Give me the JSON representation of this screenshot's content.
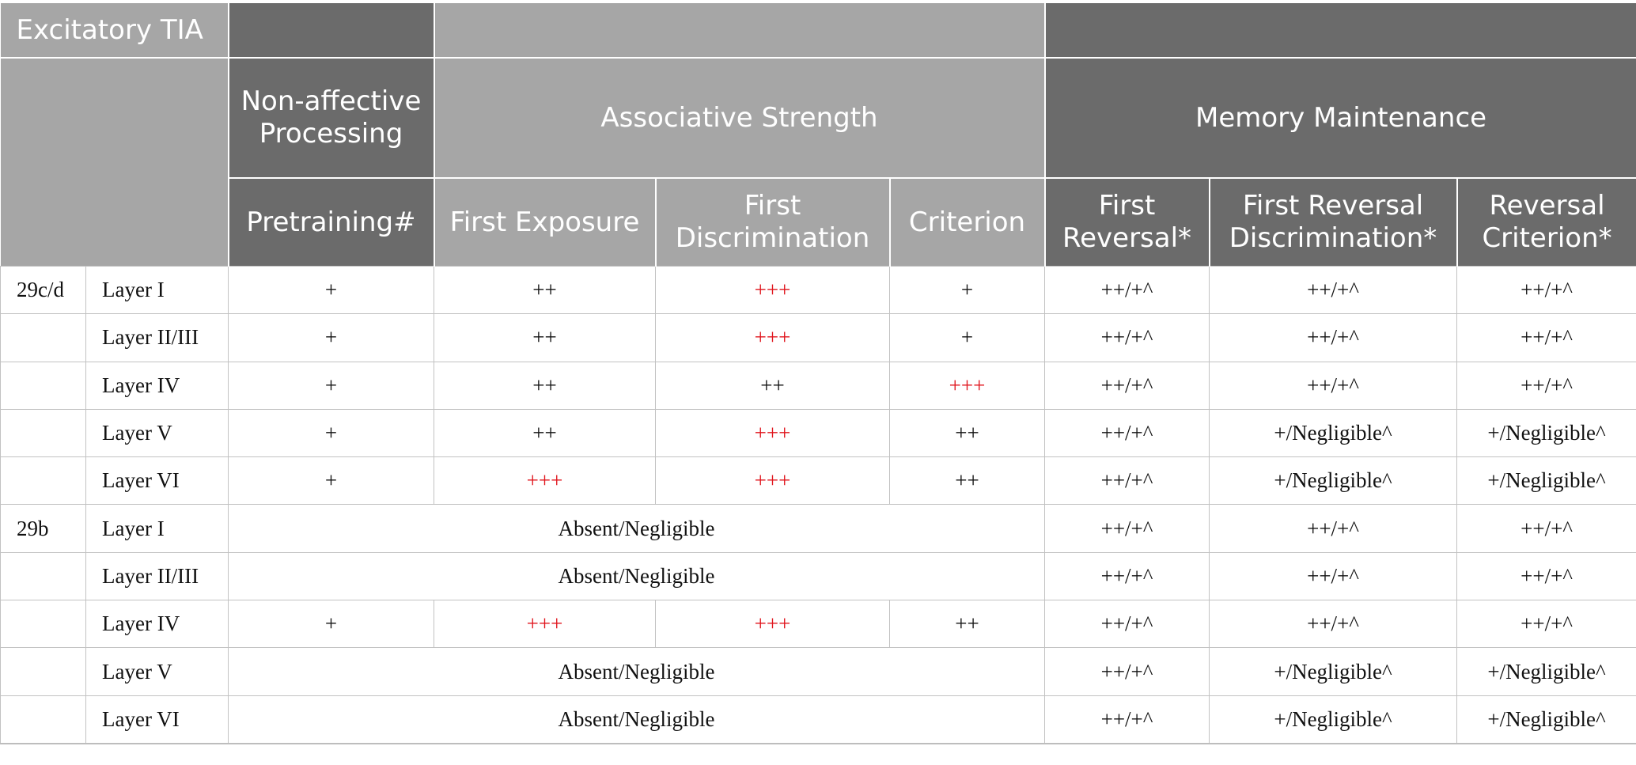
{
  "title": "Excitatory TIA",
  "headers": {
    "group_nonaffective": "Non-affective Processing",
    "group_associative": "Associative Strength",
    "group_memory": "Memory Maintenance",
    "col_pretraining": "Pretraining#",
    "col_first_exposure": "First Exposure",
    "col_first_discrimination": "First Discrimination",
    "col_criterion": "Criterion",
    "col_first_reversal": "First Reversal*",
    "col_first_reversal_discrimination": "First Reversal Discrimination*",
    "col_reversal_criterion": "Reversal Criterion*"
  },
  "colors": {
    "dark_header": "#6b6b6b",
    "light_header": "#a6a6a6",
    "highlight_red": "#e0141c"
  },
  "rows": [
    {
      "region": "29c/d",
      "layer": "Layer I",
      "pretraining": "+",
      "first_exposure": "++",
      "first_discrimination": "+++",
      "criterion": "+",
      "first_reversal": "++/+^",
      "first_reversal_discrimination": "++/+^",
      "reversal_criterion": "++/+^"
    },
    {
      "region": "",
      "layer": "Layer II/III",
      "pretraining": "+",
      "first_exposure": "++",
      "first_discrimination": "+++",
      "criterion": "+",
      "first_reversal": "++/+^",
      "first_reversal_discrimination": "++/+^",
      "reversal_criterion": "++/+^"
    },
    {
      "region": "",
      "layer": "Layer IV",
      "pretraining": "+",
      "first_exposure": "++",
      "first_discrimination": "++",
      "criterion": "+++",
      "first_reversal": "++/+^",
      "first_reversal_discrimination": "++/+^",
      "reversal_criterion": "++/+^"
    },
    {
      "region": "",
      "layer": "Layer V",
      "pretraining": "+",
      "first_exposure": "++",
      "first_discrimination": "+++",
      "criterion": "++",
      "first_reversal": "++/+^",
      "first_reversal_discrimination": "+/Negligible^",
      "reversal_criterion": "+/Negligible^"
    },
    {
      "region": "",
      "layer": "Layer VI",
      "pretraining": "+",
      "first_exposure": "+++",
      "first_discrimination": "+++",
      "criterion": "++",
      "first_reversal": "++/+^",
      "first_reversal_discrimination": "+/Negligible^",
      "reversal_criterion": "+/Negligible^"
    },
    {
      "region": "29b",
      "layer": "Layer I",
      "merged": "Absent/Negligible",
      "first_reversal": "++/+^",
      "first_reversal_discrimination": "++/+^",
      "reversal_criterion": "++/+^"
    },
    {
      "region": "",
      "layer": "Layer II/III",
      "merged": "Absent/Negligible",
      "first_reversal": "++/+^",
      "first_reversal_discrimination": "++/+^",
      "reversal_criterion": "++/+^"
    },
    {
      "region": "",
      "layer": "Layer IV",
      "pretraining": "+",
      "first_exposure": "+++",
      "first_discrimination": "+++",
      "criterion": "++",
      "first_reversal": "++/+^",
      "first_reversal_discrimination": "++/+^",
      "reversal_criterion": "++/+^"
    },
    {
      "region": "",
      "layer": "Layer V",
      "merged": "Absent/Negligible",
      "first_reversal": "++/+^",
      "first_reversal_discrimination": "+/Negligible^",
      "reversal_criterion": "+/Negligible^"
    },
    {
      "region": "",
      "layer": "Layer VI",
      "merged": "Absent/Negligible",
      "first_reversal": "++/+^",
      "first_reversal_discrimination": "+/Negligible^",
      "reversal_criterion": "+/Negligible^"
    }
  ]
}
